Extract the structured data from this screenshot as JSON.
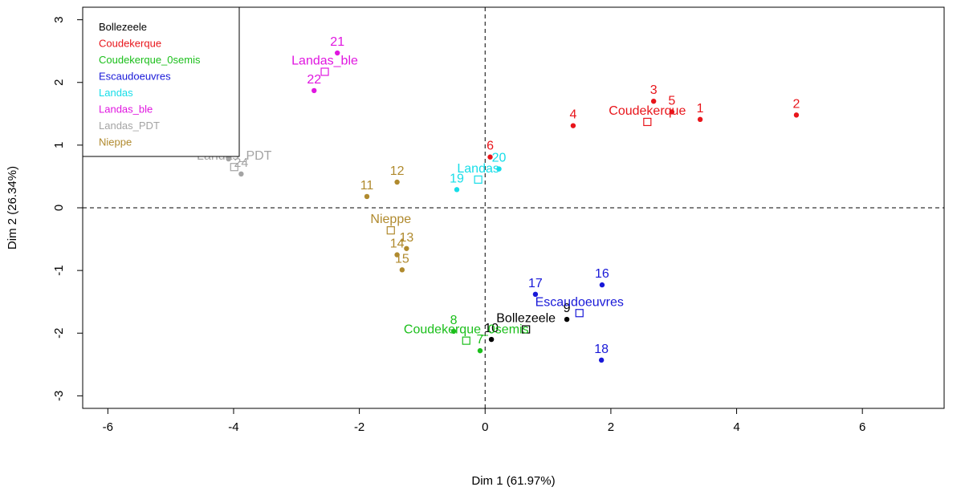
{
  "chart_data": {
    "type": "scatter",
    "xlabel": "Dim 1 (61.97%)",
    "ylabel": "Dim 2 (26.34%)",
    "xlim": [
      -6.4,
      7.3
    ],
    "ylim": [
      -3.2,
      3.2
    ],
    "xticks": [
      -6,
      -4,
      -2,
      0,
      2,
      4,
      6
    ],
    "yticks": [
      -3,
      -2,
      -1,
      0,
      1,
      2,
      3
    ],
    "xtick_labels": [
      "-6",
      "-4",
      "-2",
      "0",
      "2",
      "4",
      "6"
    ],
    "ytick_labels": [
      "-3",
      "-2",
      "-1",
      "0",
      "1",
      "2",
      "3"
    ],
    "reference_lines": {
      "x": 0,
      "y": 0,
      "style": "dashed"
    },
    "legend": {
      "placement": "top-left",
      "entries": [
        {
          "label": "Bollezeele",
          "color": "#000000"
        },
        {
          "label": "Coudekerque",
          "color": "#e8151b"
        },
        {
          "label": "Coudekerque_0semis",
          "color": "#1bbf1b"
        },
        {
          "label": "Escaudoeuvres",
          "color": "#1818d8"
        },
        {
          "label": "Landas",
          "color": "#16dde8"
        },
        {
          "label": "Landas_ble",
          "color": "#e016e0"
        },
        {
          "label": "Landas_PDT",
          "color": "#a4a4a4"
        },
        {
          "label": "Nieppe",
          "color": "#b08a2e"
        }
      ]
    },
    "series": [
      {
        "name": "Bollezeele",
        "color": "#000000",
        "points": [
          {
            "label": "9",
            "x": 1.3,
            "y": -1.78
          },
          {
            "label": "10",
            "x": 0.1,
            "y": -2.1
          }
        ],
        "centroid": {
          "label": "Bollezeele",
          "x": 0.65,
          "y": -1.94
        }
      },
      {
        "name": "Coudekerque",
        "color": "#e8151b",
        "points": [
          {
            "label": "1",
            "x": 3.42,
            "y": 1.41
          },
          {
            "label": "2",
            "x": 4.95,
            "y": 1.48
          },
          {
            "label": "3",
            "x": 2.68,
            "y": 1.7
          },
          {
            "label": "4",
            "x": 1.4,
            "y": 1.31
          },
          {
            "label": "5",
            "x": 2.97,
            "y": 1.53
          },
          {
            "label": "6",
            "x": 0.08,
            "y": 0.81
          }
        ],
        "centroid": {
          "label": "Coudekerque",
          "x": 2.58,
          "y": 1.37
        }
      },
      {
        "name": "Coudekerque_0semis",
        "color": "#1bbf1b",
        "points": [
          {
            "label": "7",
            "x": -0.08,
            "y": -2.28
          },
          {
            "label": "8",
            "x": -0.5,
            "y": -1.97
          }
        ],
        "centroid": {
          "label": "Coudekerque_0semis",
          "x": -0.3,
          "y": -2.12
        }
      },
      {
        "name": "Escaudoeuvres",
        "color": "#1818d8",
        "points": [
          {
            "label": "16",
            "x": 1.86,
            "y": -1.23
          },
          {
            "label": "17",
            "x": 0.8,
            "y": -1.38
          },
          {
            "label": "18",
            "x": 1.85,
            "y": -2.43
          }
        ],
        "centroid": {
          "label": "Escaudoeuvres",
          "x": 1.5,
          "y": -1.68
        }
      },
      {
        "name": "Landas",
        "color": "#16dde8",
        "points": [
          {
            "label": "19",
            "x": -0.45,
            "y": 0.29
          },
          {
            "label": "20",
            "x": 0.22,
            "y": 0.62
          }
        ],
        "centroid": {
          "label": "Landas",
          "x": -0.11,
          "y": 0.45
        }
      },
      {
        "name": "Landas_ble",
        "color": "#e016e0",
        "points": [
          {
            "label": "21",
            "x": -2.35,
            "y": 2.47
          },
          {
            "label": "22",
            "x": -2.72,
            "y": 1.87
          }
        ],
        "centroid": {
          "label": "Landas_ble",
          "x": -2.55,
          "y": 2.17
        }
      },
      {
        "name": "Landas_PDT",
        "color": "#a4a4a4",
        "points": [
          {
            "label": "23",
            "x": -4.08,
            "y": 0.78
          },
          {
            "label": "24",
            "x": -3.88,
            "y": 0.54
          }
        ],
        "centroid": {
          "label": "Landas_PDT",
          "x": -3.99,
          "y": 0.65
        }
      },
      {
        "name": "Nieppe",
        "color": "#b08a2e",
        "points": [
          {
            "label": "11",
            "x": -1.88,
            "y": 0.18
          },
          {
            "label": "12",
            "x": -1.4,
            "y": 0.41
          },
          {
            "label": "13",
            "x": -1.25,
            "y": -0.65
          },
          {
            "label": "14",
            "x": -1.4,
            "y": -0.75
          },
          {
            "label": "15",
            "x": -1.32,
            "y": -0.99
          }
        ],
        "centroid": {
          "label": "Nieppe",
          "x": -1.5,
          "y": -0.36
        }
      }
    ]
  }
}
